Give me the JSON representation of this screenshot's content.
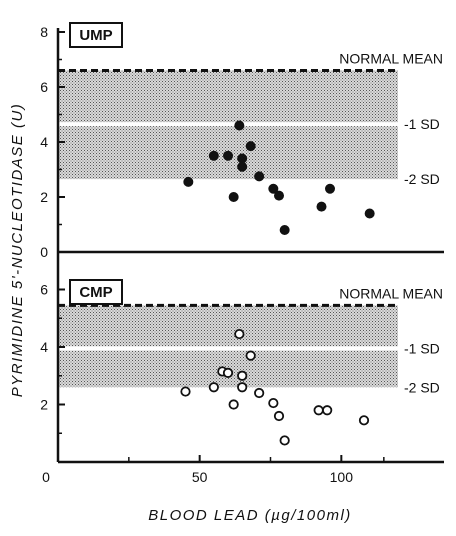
{
  "chart_data": [
    {
      "type": "scatter",
      "title": "UMP",
      "xlim": [
        0,
        130
      ],
      "ylim": [
        0,
        8
      ],
      "yticks": [
        "0",
        "2",
        "4",
        "6",
        "8"
      ],
      "marker": "filled",
      "normal_mean": 6.6,
      "minus_1sd": 4.65,
      "minus_2sd": 2.65,
      "band_labels": {
        "mean": "NORMAL  MEAN",
        "sd1": "-1 SD",
        "sd2": "-2 SD"
      },
      "points": [
        {
          "x": 46,
          "y": 2.55
        },
        {
          "x": 55,
          "y": 3.5
        },
        {
          "x": 60,
          "y": 3.5
        },
        {
          "x": 62,
          "y": 2.0
        },
        {
          "x": 64,
          "y": 4.6
        },
        {
          "x": 65,
          "y": 3.4
        },
        {
          "x": 65,
          "y": 3.1
        },
        {
          "x": 68,
          "y": 3.85
        },
        {
          "x": 71,
          "y": 2.75
        },
        {
          "x": 76,
          "y": 2.3
        },
        {
          "x": 78,
          "y": 2.05
        },
        {
          "x": 80,
          "y": 0.8
        },
        {
          "x": 93,
          "y": 1.65
        },
        {
          "x": 96,
          "y": 2.3
        },
        {
          "x": 110,
          "y": 1.4
        }
      ]
    },
    {
      "type": "scatter",
      "title": "CMP",
      "xlim": [
        0,
        130
      ],
      "ylim": [
        0,
        7
      ],
      "yticks": [
        "2",
        "4",
        "6"
      ],
      "marker": "open",
      "normal_mean": 5.45,
      "minus_1sd": 3.95,
      "minus_2sd": 2.6,
      "band_labels": {
        "mean": "NORMAL  MEAN",
        "sd1": "-1 SD",
        "sd2": "-2 SD"
      },
      "points": [
        {
          "x": 45,
          "y": 2.45
        },
        {
          "x": 55,
          "y": 2.6
        },
        {
          "x": 58,
          "y": 3.15
        },
        {
          "x": 60,
          "y": 3.1
        },
        {
          "x": 62,
          "y": 2.0
        },
        {
          "x": 64,
          "y": 4.45
        },
        {
          "x": 65,
          "y": 3.0
        },
        {
          "x": 65,
          "y": 2.6
        },
        {
          "x": 68,
          "y": 3.7
        },
        {
          "x": 71,
          "y": 2.4
        },
        {
          "x": 76,
          "y": 2.05
        },
        {
          "x": 78,
          "y": 1.6
        },
        {
          "x": 80,
          "y": 0.75
        },
        {
          "x": 92,
          "y": 1.8
        },
        {
          "x": 95,
          "y": 1.8
        },
        {
          "x": 108,
          "y": 1.45
        }
      ]
    }
  ],
  "shared": {
    "xlabel": "BLOOD LEAD (µg/100ml)",
    "ylabel": "PYRIMIDINE 5'-NUCLEOTIDASE (U)",
    "xticks": [
      "0",
      "50",
      "100"
    ]
  }
}
